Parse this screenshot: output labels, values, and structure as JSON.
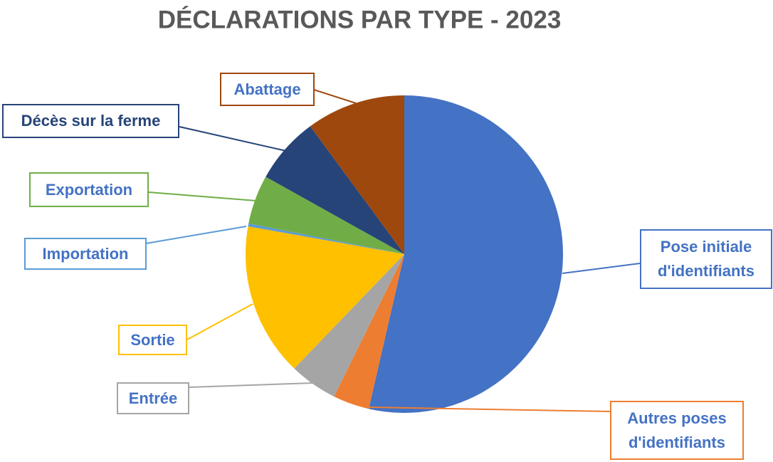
{
  "chart_data": {
    "type": "pie",
    "title": "DÉCLARATIONS PAR TYPE - 2023",
    "categories": [
      "Pose initiale d'identifiants",
      "Autres poses d'identifiants",
      "Entrée",
      "Sortie",
      "Importation",
      "Exportation",
      "Décès sur la ferme",
      "Abattage"
    ],
    "values": [
      53.6,
      3.7,
      4.9,
      15.6,
      0.3,
      5.0,
      6.8,
      10.1
    ],
    "colors": [
      "#4472c4",
      "#ed7d31",
      "#a5a5a5",
      "#ffc000",
      "#5b9bd5",
      "#70ad47",
      "#264478",
      "#9e480e"
    ]
  }
}
